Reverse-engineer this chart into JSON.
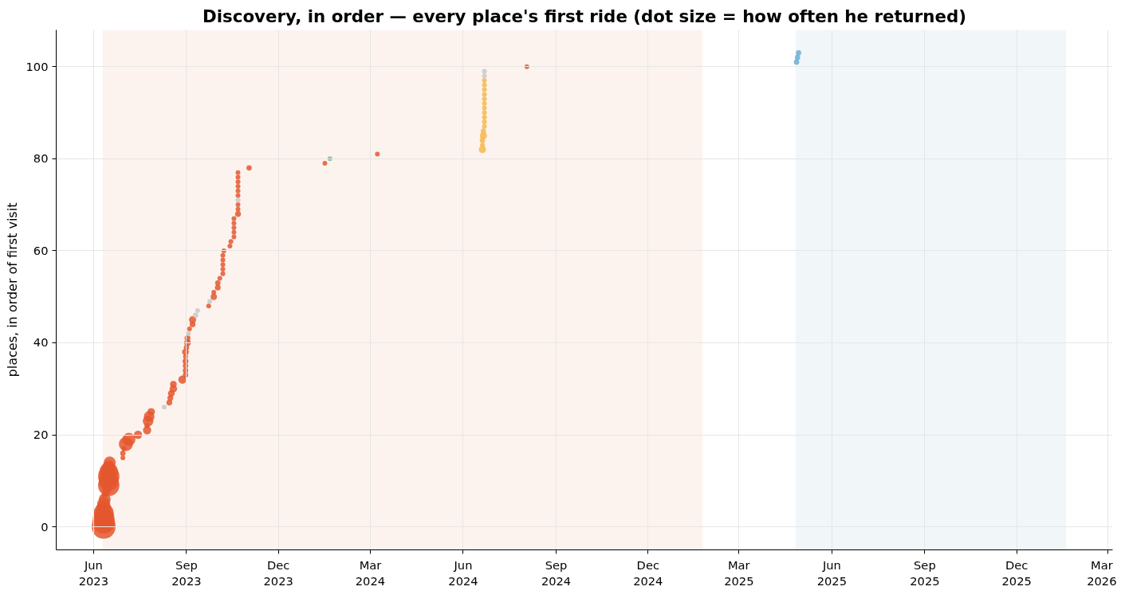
{
  "chart_data": {
    "type": "bubble",
    "title": "Discovery, in order — every place's first ride (dot size = how often he returned)",
    "ylabel": "places, in order of first visit",
    "xlim": [
      "2023-04-25",
      "2026-03-06"
    ],
    "ylim": [
      -5,
      108
    ],
    "yticks": [
      0,
      20,
      40,
      60,
      80,
      100
    ],
    "xticks": [
      {
        "value": "2023-06-01",
        "label": "Jun\n2023"
      },
      {
        "value": "2023-09-01",
        "label": "Sep\n2023"
      },
      {
        "value": "2023-12-01",
        "label": "Dec\n2023"
      },
      {
        "value": "2024-03-01",
        "label": "Mar\n2024"
      },
      {
        "value": "2024-06-01",
        "label": "Jun\n2024"
      },
      {
        "value": "2024-09-01",
        "label": "Sep\n2024"
      },
      {
        "value": "2024-12-01",
        "label": "Dec\n2024"
      },
      {
        "value": "2025-03-01",
        "label": "Mar\n2025"
      },
      {
        "value": "2025-06-01",
        "label": "Jun\n2025"
      },
      {
        "value": "2025-09-01",
        "label": "Sep\n2025"
      },
      {
        "value": "2025-12-01",
        "label": "Dec\n2025"
      },
      {
        "value": "2026-03-01",
        "label": "Mar\n2026"
      }
    ],
    "grid": true,
    "bands": [
      {
        "axis": "x",
        "from": "2023-06-10",
        "to": "2025-01-24",
        "color": "#fcf3ef"
      },
      {
        "axis": "x",
        "from": "2025-04-26",
        "to": "2026-01-19",
        "color": "#f1f6f9"
      }
    ],
    "series": [
      {
        "color": "#e4572e",
        "x": [
          "2023-06-11",
          "2023-06-11",
          "2023-06-11",
          "2023-06-11",
          "2023-06-11",
          "2023-06-11",
          "2023-06-12",
          "2023-06-12",
          "2023-06-14",
          "2023-06-16",
          "2023-06-16",
          "2023-06-16",
          "2023-06-16",
          "2023-06-16",
          "2023-06-17",
          "2023-06-30",
          "2023-06-30",
          "2023-07-01",
          "2023-07-03",
          "2023-07-06",
          "2023-07-15",
          "2023-07-24",
          "2023-07-24",
          "2023-07-25",
          "2023-07-26",
          "2023-07-28",
          "2023-08-15",
          "2023-08-16",
          "2023-08-17",
          "2023-08-19",
          "2023-08-19",
          "2023-08-28",
          "2023-08-31",
          "2023-08-31",
          "2023-08-31",
          "2023-08-31",
          "2023-08-31",
          "2023-08-31",
          "2023-09-01",
          "2023-09-02",
          "2023-09-02",
          "2023-09-04",
          "2023-09-07",
          "2023-09-07",
          "2023-09-23",
          "2023-09-28",
          "2023-09-28",
          "2023-10-02",
          "2023-10-02",
          "2023-10-04",
          "2023-10-07",
          "2023-10-07",
          "2023-10-07",
          "2023-10-07",
          "2023-10-07",
          "2023-10-08",
          "2023-10-14",
          "2023-10-15",
          "2023-10-18",
          "2023-10-18",
          "2023-10-18",
          "2023-10-18",
          "2023-10-18",
          "2023-10-22",
          "2023-10-22",
          "2023-10-22",
          "2023-10-22",
          "2023-10-22",
          "2023-10-22",
          "2023-10-22",
          "2023-10-22",
          "2023-10-22",
          "2023-11-02",
          "2024-01-16",
          "2024-03-08",
          "2024-08-03"
        ],
        "values": [
          0,
          1,
          2,
          3,
          4,
          5,
          6,
          7,
          8,
          9,
          10,
          11,
          12,
          13,
          14,
          15,
          16,
          17,
          18,
          19,
          20,
          21,
          22,
          23,
          24,
          25,
          27,
          28,
          29,
          30,
          31,
          32,
          33,
          34,
          35,
          36,
          37,
          38,
          39,
          40,
          41,
          43,
          44,
          45,
          48,
          50,
          51,
          52,
          53,
          54,
          55,
          56,
          57,
          58,
          59,
          60,
          61,
          62,
          63,
          64,
          65,
          66,
          67,
          68,
          69,
          70,
          72,
          73,
          74,
          75,
          76,
          77,
          78,
          79,
          81,
          100
        ],
        "sizes": [
          1.0,
          0.9,
          0.8,
          0.7,
          0.4,
          0.3,
          0.25,
          0.06,
          0.15,
          0.8,
          0.7,
          0.8,
          0.6,
          0.3,
          0.25,
          0.04,
          0.05,
          0.04,
          0.35,
          0.3,
          0.12,
          0.12,
          0.05,
          0.2,
          0.2,
          0.1,
          0.06,
          0.06,
          0.08,
          0.1,
          0.08,
          0.12,
          0.05,
          0.05,
          0.05,
          0.06,
          0.04,
          0.08,
          0.05,
          0.08,
          0.06,
          0.04,
          0.06,
          0.09,
          0.04,
          0.07,
          0.04,
          0.06,
          0.05,
          0.04,
          0.04,
          0.04,
          0.04,
          0.04,
          0.04,
          0.04,
          0.04,
          0.04,
          0.04,
          0.04,
          0.04,
          0.04,
          0.04,
          0.06,
          0.04,
          0.04,
          0.04,
          0.04,
          0.04,
          0.04,
          0.04,
          0.04,
          0.05,
          0.04,
          0.04,
          0.04
        ]
      },
      {
        "color": "#c8c8c8",
        "x": [
          "2023-08-10",
          "2023-09-03",
          "2023-09-10",
          "2023-09-12",
          "2023-09-24",
          "2023-10-22",
          "2024-06-22",
          "2024-06-22"
        ],
        "values": [
          26,
          42,
          46,
          47,
          49,
          71,
          98,
          99
        ],
        "sizes": [
          0.04,
          0.04,
          0.05,
          0.04,
          0.04,
          0.04,
          0.04,
          0.04
        ]
      },
      {
        "color": "#f6b94a",
        "x": [
          "2024-06-20",
          "2024-06-20",
          "2024-06-20",
          "2024-06-21",
          "2024-06-21",
          "2024-06-22",
          "2024-06-22",
          "2024-06-22",
          "2024-06-22",
          "2024-06-22",
          "2024-06-22",
          "2024-06-22",
          "2024-06-22",
          "2024-06-22",
          "2024-06-22",
          "2024-06-22"
        ],
        "values": [
          82,
          83,
          84,
          85,
          86,
          87,
          88,
          89,
          90,
          91,
          92,
          93,
          94,
          95,
          96,
          97
        ],
        "sizes": [
          0.09,
          0.04,
          0.05,
          0.09,
          0.05,
          0.04,
          0.04,
          0.04,
          0.04,
          0.04,
          0.04,
          0.04,
          0.04,
          0.04,
          0.04,
          0.04
        ]
      },
      {
        "color": "#7fbf90",
        "x": [
          "2024-01-21"
        ],
        "values": [
          80
        ],
        "sizes": [
          0.04
        ]
      },
      {
        "color": "#6aaed6",
        "x": [
          "2025-04-27",
          "2025-04-28",
          "2025-04-29"
        ],
        "values": [
          101,
          102,
          103
        ],
        "sizes": [
          0.05,
          0.05,
          0.05
        ]
      }
    ]
  }
}
